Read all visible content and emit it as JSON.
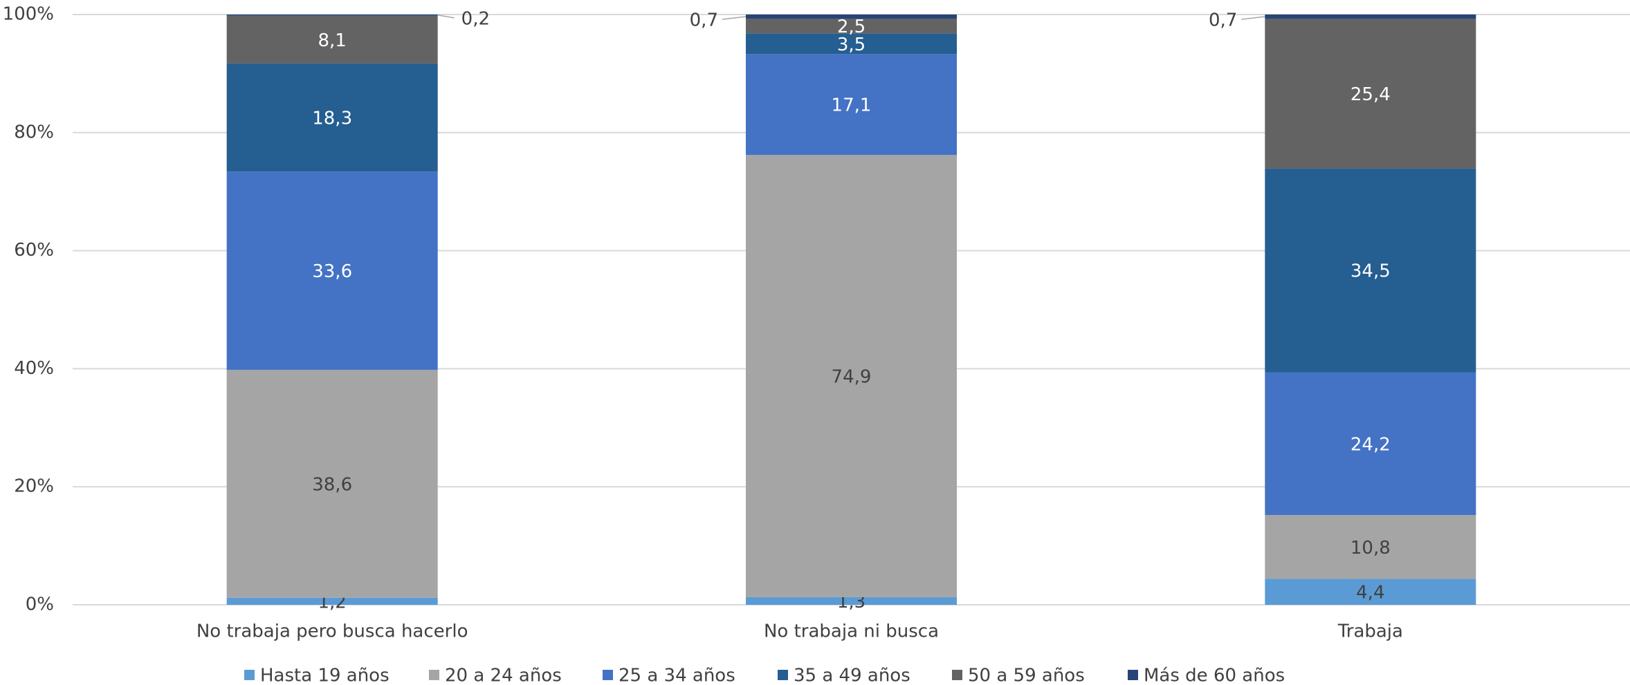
{
  "chart_data": {
    "type": "stacked_bar",
    "categories": [
      "No trabaja pero busca hacerlo",
      "No trabaja ni busca",
      "Trabaja"
    ],
    "series": [
      {
        "name": "Hasta 19 años",
        "color": "#5b9bd5",
        "values": [
          1.2,
          1.3,
          4.4
        ],
        "value_labels": [
          "1,2",
          "1,3",
          "4,4"
        ]
      },
      {
        "name": "20 a 24 años",
        "color": "#a5a5a5",
        "values": [
          38.6,
          74.9,
          10.8
        ],
        "value_labels": [
          "38,6",
          "74,9",
          "10,8"
        ]
      },
      {
        "name": "25 a 34 años",
        "color": "#4472c4",
        "values": [
          33.6,
          17.1,
          24.2
        ],
        "value_labels": [
          "33,6",
          "17,1",
          "24,2"
        ]
      },
      {
        "name": "35 a 49 años",
        "color": "#255e91",
        "values": [
          18.3,
          3.5,
          34.5
        ],
        "value_labels": [
          "18,3",
          "3,5",
          "34,5"
        ]
      },
      {
        "name": "50 a 59 años",
        "color": "#636363",
        "values": [
          8.1,
          2.5,
          25.4
        ],
        "value_labels": [
          "8,1",
          "2,5",
          "25,4"
        ]
      },
      {
        "name": "Más de 60 años",
        "color": "#264478",
        "values": [
          0.2,
          0.7,
          0.7
        ],
        "value_labels": [
          "0,2",
          "0,7",
          "0,7"
        ]
      }
    ],
    "ylim": [
      0,
      100
    ],
    "yticks": [
      {
        "value": 0,
        "label": "0%"
      },
      {
        "value": 20,
        "label": "20%"
      },
      {
        "value": 40,
        "label": "40%"
      },
      {
        "value": 60,
        "label": "60%"
      },
      {
        "value": 80,
        "label": "80%"
      },
      {
        "value": 100,
        "label": "100%"
      }
    ],
    "grid": true,
    "legend": "bottom"
  }
}
